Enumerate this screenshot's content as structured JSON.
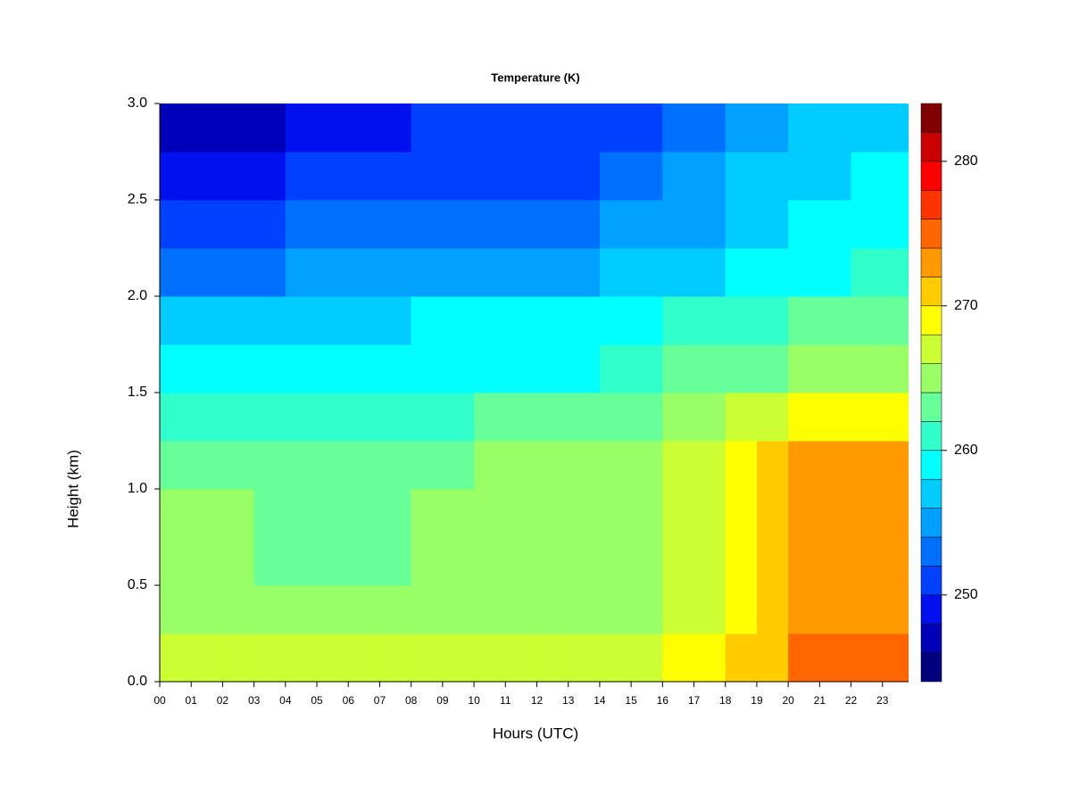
{
  "chart_data": {
    "type": "heatmap",
    "title": "Temperature (K)",
    "xlabel": "Hours (UTC)",
    "ylabel": "Height (km)",
    "xlim": [
      0,
      23.83
    ],
    "ylim": [
      0,
      3
    ],
    "xticks": [
      {
        "value": 0,
        "label": "00"
      },
      {
        "value": 1,
        "label": "01"
      },
      {
        "value": 2,
        "label": "02"
      },
      {
        "value": 3,
        "label": "03"
      },
      {
        "value": 4,
        "label": "04"
      },
      {
        "value": 5,
        "label": "05"
      },
      {
        "value": 6,
        "label": "06"
      },
      {
        "value": 7,
        "label": "07"
      },
      {
        "value": 8,
        "label": "08"
      },
      {
        "value": 9,
        "label": "09"
      },
      10,
      11,
      12,
      13,
      14,
      15,
      16,
      17,
      18,
      19,
      20,
      21,
      22,
      23
    ],
    "yticks": [
      {
        "value": 0,
        "label": "0.0"
      },
      {
        "value": 0.5,
        "label": "0.5"
      },
      {
        "value": 1,
        "label": "1.0"
      },
      {
        "value": 1.5,
        "label": "1.5"
      },
      {
        "value": 2,
        "label": "2.0"
      },
      {
        "value": 2.5,
        "label": "2.5"
      },
      {
        "value": 3,
        "label": "3.0"
      }
    ],
    "xbins": [
      0,
      1,
      2,
      3,
      4,
      5,
      6,
      7,
      8,
      9,
      10,
      11,
      12,
      13,
      14,
      15,
      16,
      17,
      18,
      19,
      20,
      21,
      22,
      23,
      23.83
    ],
    "ybins": [
      0,
      0.25,
      0.5,
      0.75,
      1,
      1.25,
      1.5,
      1.75,
      2,
      2.25,
      2.5,
      2.75,
      3
    ],
    "z": [
      [
        266.5,
        266.5,
        266.5,
        266.5,
        266.5,
        266.5,
        266.5,
        266.5,
        266.5,
        266.5,
        266.5,
        266.5,
        267,
        267,
        267,
        267,
        268,
        268,
        271,
        271,
        274,
        274,
        274,
        274
      ],
      [
        265,
        265,
        265,
        265,
        265,
        265,
        265,
        265,
        265,
        265,
        265,
        265,
        265,
        265,
        265,
        265,
        267,
        267,
        269,
        270,
        273,
        273,
        273,
        273
      ],
      [
        265,
        265,
        265,
        263,
        263,
        263,
        263,
        263,
        265,
        265,
        265,
        265,
        265,
        265,
        265,
        265,
        267,
        267,
        269,
        271,
        273,
        273,
        273,
        273
      ],
      [
        264,
        264,
        264,
        263,
        263,
        263,
        263,
        263,
        264,
        264,
        265,
        265,
        265,
        265,
        265,
        265,
        267,
        267,
        269,
        271,
        272.5,
        272.5,
        272.5,
        272.5
      ],
      [
        263,
        263,
        263,
        263,
        263,
        263,
        263,
        263,
        263,
        263,
        264,
        264,
        264,
        264,
        264,
        264,
        266,
        266,
        268,
        270,
        272,
        272,
        272,
        272
      ],
      [
        261,
        261,
        261,
        261,
        261,
        261,
        261,
        261,
        261,
        261,
        262,
        262,
        262,
        262,
        263,
        263,
        265,
        265,
        267,
        267,
        268,
        268,
        269,
        269
      ],
      [
        259,
        259,
        259,
        259,
        259,
        259,
        259,
        259,
        259,
        259,
        259,
        259,
        259,
        259,
        260,
        260,
        262,
        262,
        263,
        263,
        264,
        264,
        265,
        265
      ],
      [
        256,
        256,
        256,
        256,
        257,
        257,
        257,
        257,
        258,
        258,
        258,
        258,
        258,
        258,
        259,
        259,
        260,
        260,
        261,
        261,
        262,
        262,
        263,
        263
      ],
      [
        253,
        253,
        253,
        253,
        254,
        254,
        254,
        254,
        255,
        255,
        255,
        255,
        255,
        255,
        256,
        256,
        257,
        257,
        258,
        258,
        259,
        259,
        261,
        261
      ],
      [
        251,
        251,
        251,
        251,
        252,
        252,
        252,
        252,
        253,
        253,
        253,
        253,
        253,
        253,
        254,
        254,
        255,
        255,
        257,
        257,
        258,
        258,
        259,
        259
      ],
      [
        249,
        249,
        249,
        249,
        250,
        250,
        250,
        250,
        251,
        251,
        251,
        251,
        251,
        251,
        252,
        252,
        254,
        254,
        256,
        256,
        257,
        257,
        258,
        258
      ],
      [
        247,
        247,
        247,
        247,
        249,
        249,
        249,
        249,
        250,
        250,
        250,
        250,
        250,
        250,
        251,
        251,
        253,
        253,
        254,
        254,
        256,
        256,
        257,
        257
      ]
    ],
    "colorbar": {
      "lim": [
        244,
        284
      ],
      "ticks": [
        250,
        260,
        270,
        280
      ],
      "levels": [
        244,
        246,
        248,
        250,
        252,
        254,
        256,
        258,
        260,
        262,
        264,
        266,
        268,
        270,
        272,
        274,
        276,
        278,
        280,
        282,
        284
      ],
      "colors": [
        "#00007f",
        "#0000b8",
        "#0010ee",
        "#0040ff",
        "#0070ff",
        "#00a0ff",
        "#00ccff",
        "#00ffff",
        "#30ffcc",
        "#66ff99",
        "#99ff66",
        "#ccff33",
        "#ffff00",
        "#ffcc00",
        "#ff9900",
        "#ff6600",
        "#ff3300",
        "#ff0000",
        "#cc0000",
        "#800000"
      ]
    }
  }
}
